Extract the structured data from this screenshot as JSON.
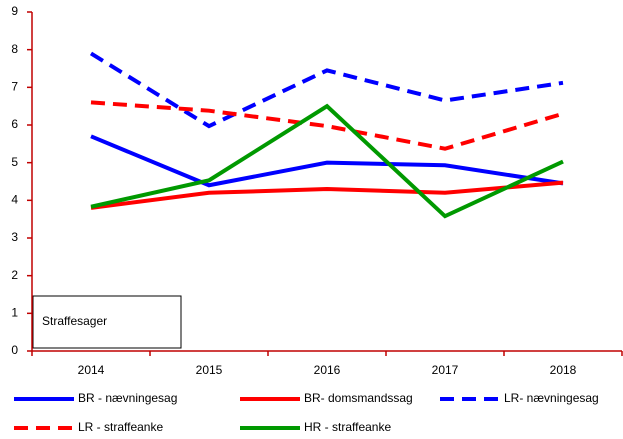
{
  "chart_data": {
    "type": "line",
    "categories": [
      "2014",
      "2015",
      "2016",
      "2017",
      "2018"
    ],
    "series": [
      {
        "name": "BR - nævningesag",
        "color": "#0000ff",
        "dashed": false,
        "values": [
          5.7,
          4.4,
          5.0,
          4.93,
          4.45
        ]
      },
      {
        "name": "BR- domsmandssag",
        "color": "#ff0000",
        "dashed": false,
        "values": [
          3.8,
          4.2,
          4.3,
          4.2,
          4.47
        ]
      },
      {
        "name": "LR- nævningesag",
        "color": "#0000ff",
        "dashed": true,
        "values": [
          7.9,
          5.97,
          7.45,
          6.65,
          7.12
        ]
      },
      {
        "name": "LR - straffeanke",
        "color": "#ff0000",
        "dashed": true,
        "values": [
          6.6,
          6.38,
          5.97,
          5.37,
          6.3
        ]
      },
      {
        "name": "HR - straffeanke",
        "color": "#009900",
        "dashed": false,
        "values": [
          3.83,
          4.53,
          6.5,
          3.58,
          5.03
        ]
      }
    ],
    "annotation": "Straffesager",
    "ylim": [
      0,
      9
    ],
    "yticks": [
      0,
      1,
      2,
      3,
      4,
      5,
      6,
      7,
      8,
      9
    ],
    "axis_color": "#c00000"
  }
}
